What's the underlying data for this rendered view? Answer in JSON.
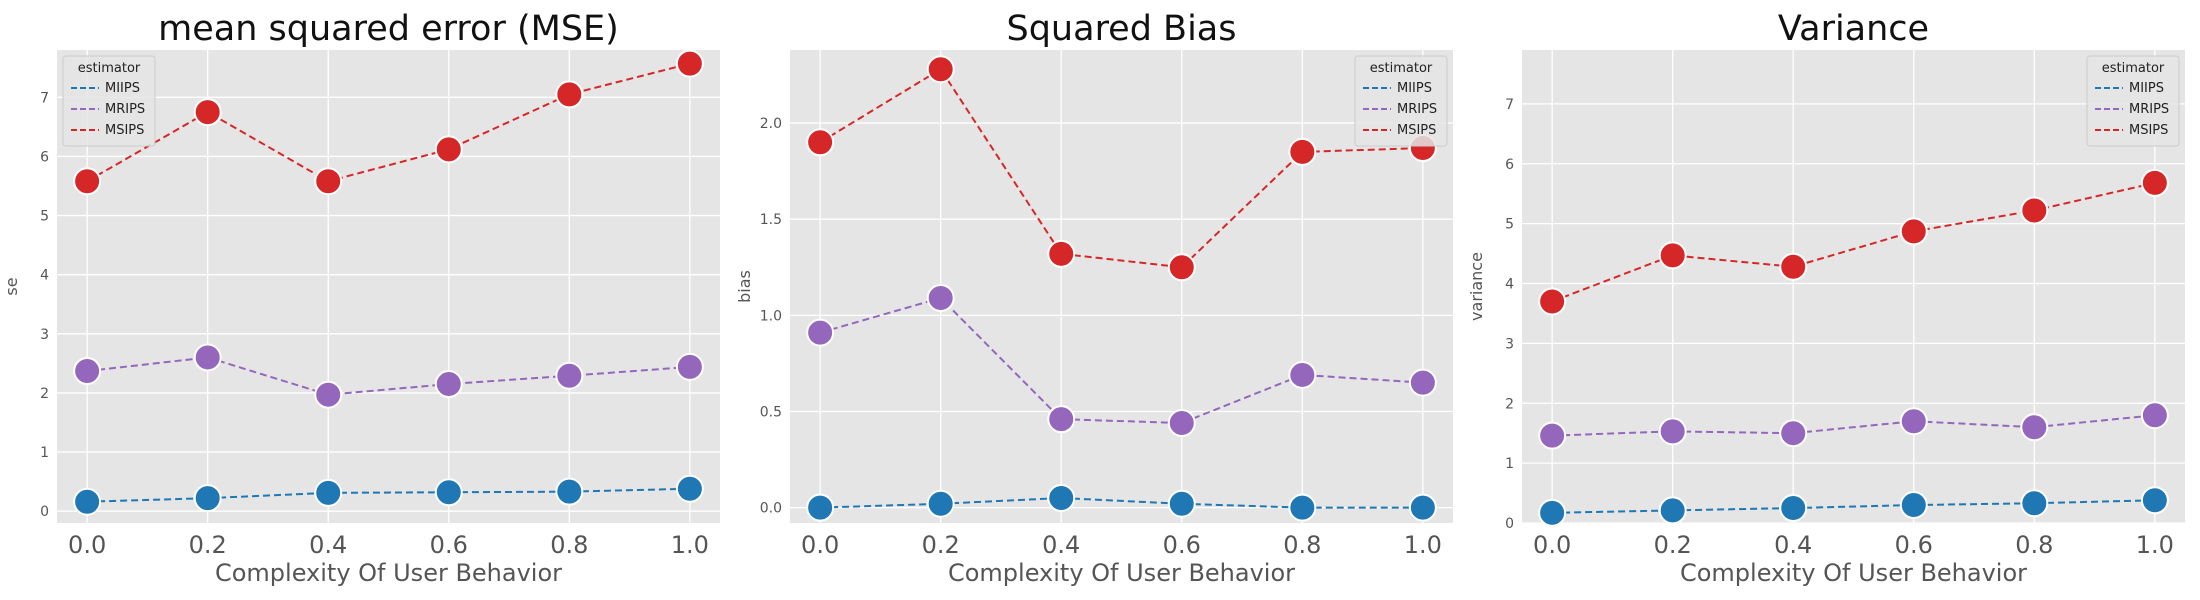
{
  "colors": {
    "panel_bg": "#e5e5e5",
    "grid": "#ffffff",
    "MIIPS": "#1f77b4",
    "MRIPS": "#9467bd",
    "MSIPS": "#d62728",
    "text": "#222222",
    "tick_text": "#555555"
  },
  "chart_data": [
    {
      "type": "line",
      "title": "mean squared error (MSE)",
      "xlabel": "Complexity Of User Behavior",
      "ylabel": "se",
      "x": [
        0.0,
        0.2,
        0.4,
        0.6,
        0.8,
        1.0
      ],
      "x_ticks": [
        "0.0",
        "0.2",
        "0.4",
        "0.6",
        "0.8",
        "1.0"
      ],
      "xlim": [
        -0.05,
        1.05
      ],
      "ylim": [
        -0.2,
        7.8
      ],
      "y_ticks": [
        0,
        1,
        2,
        3,
        4,
        5,
        6,
        7
      ],
      "y_tick_labels": [
        "0",
        "1",
        "2",
        "3",
        "4",
        "5",
        "6",
        "7"
      ],
      "grid": true,
      "legend": {
        "title": "estimator",
        "position": "top-left"
      },
      "series": [
        {
          "name": "MIIPS",
          "values": [
            0.16,
            0.22,
            0.31,
            0.32,
            0.33,
            0.38
          ]
        },
        {
          "name": "MRIPS",
          "values": [
            2.37,
            2.6,
            1.97,
            2.15,
            2.29,
            2.44
          ]
        },
        {
          "name": "MSIPS",
          "values": [
            5.58,
            6.75,
            5.58,
            6.12,
            7.05,
            7.57
          ]
        }
      ]
    },
    {
      "type": "line",
      "title": "Squared Bias",
      "xlabel": "Complexity Of User Behavior",
      "ylabel": "bias",
      "x": [
        0.0,
        0.2,
        0.4,
        0.6,
        0.8,
        1.0
      ],
      "x_ticks": [
        "0.0",
        "0.2",
        "0.4",
        "0.6",
        "0.8",
        "1.0"
      ],
      "xlim": [
        -0.05,
        1.05
      ],
      "ylim": [
        -0.08,
        2.38
      ],
      "y_ticks": [
        0,
        0.5,
        1.0,
        1.5,
        2.0
      ],
      "y_tick_labels": [
        "0.0",
        "0.5",
        "1.0",
        "1.5",
        "2.0"
      ],
      "grid": true,
      "legend": {
        "title": "estimator",
        "position": "top-right"
      },
      "series": [
        {
          "name": "MIIPS",
          "values": [
            0.0,
            0.02,
            0.05,
            0.02,
            0.0,
            0.0
          ]
        },
        {
          "name": "MRIPS",
          "values": [
            0.91,
            1.09,
            0.46,
            0.44,
            0.69,
            0.65
          ]
        },
        {
          "name": "MSIPS",
          "values": [
            1.9,
            2.28,
            1.32,
            1.25,
            1.85,
            1.87
          ]
        }
      ]
    },
    {
      "type": "line",
      "title": "Variance",
      "xlabel": "Complexity Of User Behavior",
      "ylabel": "variance",
      "x": [
        0.0,
        0.2,
        0.4,
        0.6,
        0.8,
        1.0
      ],
      "x_ticks": [
        "0.0",
        "0.2",
        "0.4",
        "0.6",
        "0.8",
        "1.0"
      ],
      "xlim": [
        -0.05,
        1.05
      ],
      "ylim": [
        0,
        7.9
      ],
      "y_ticks": [
        0,
        1,
        2,
        3,
        4,
        5,
        6,
        7
      ],
      "y_tick_labels": [
        "0",
        "1",
        "2",
        "3",
        "4",
        "5",
        "6",
        "7"
      ],
      "grid": true,
      "legend": {
        "title": "estimator",
        "position": "top-right"
      },
      "series": [
        {
          "name": "MIIPS",
          "values": [
            0.17,
            0.21,
            0.25,
            0.3,
            0.33,
            0.38
          ]
        },
        {
          "name": "MRIPS",
          "values": [
            1.46,
            1.53,
            1.5,
            1.7,
            1.6,
            1.8
          ]
        },
        {
          "name": "MSIPS",
          "values": [
            3.7,
            4.47,
            4.28,
            4.87,
            5.22,
            5.68
          ]
        }
      ]
    }
  ]
}
